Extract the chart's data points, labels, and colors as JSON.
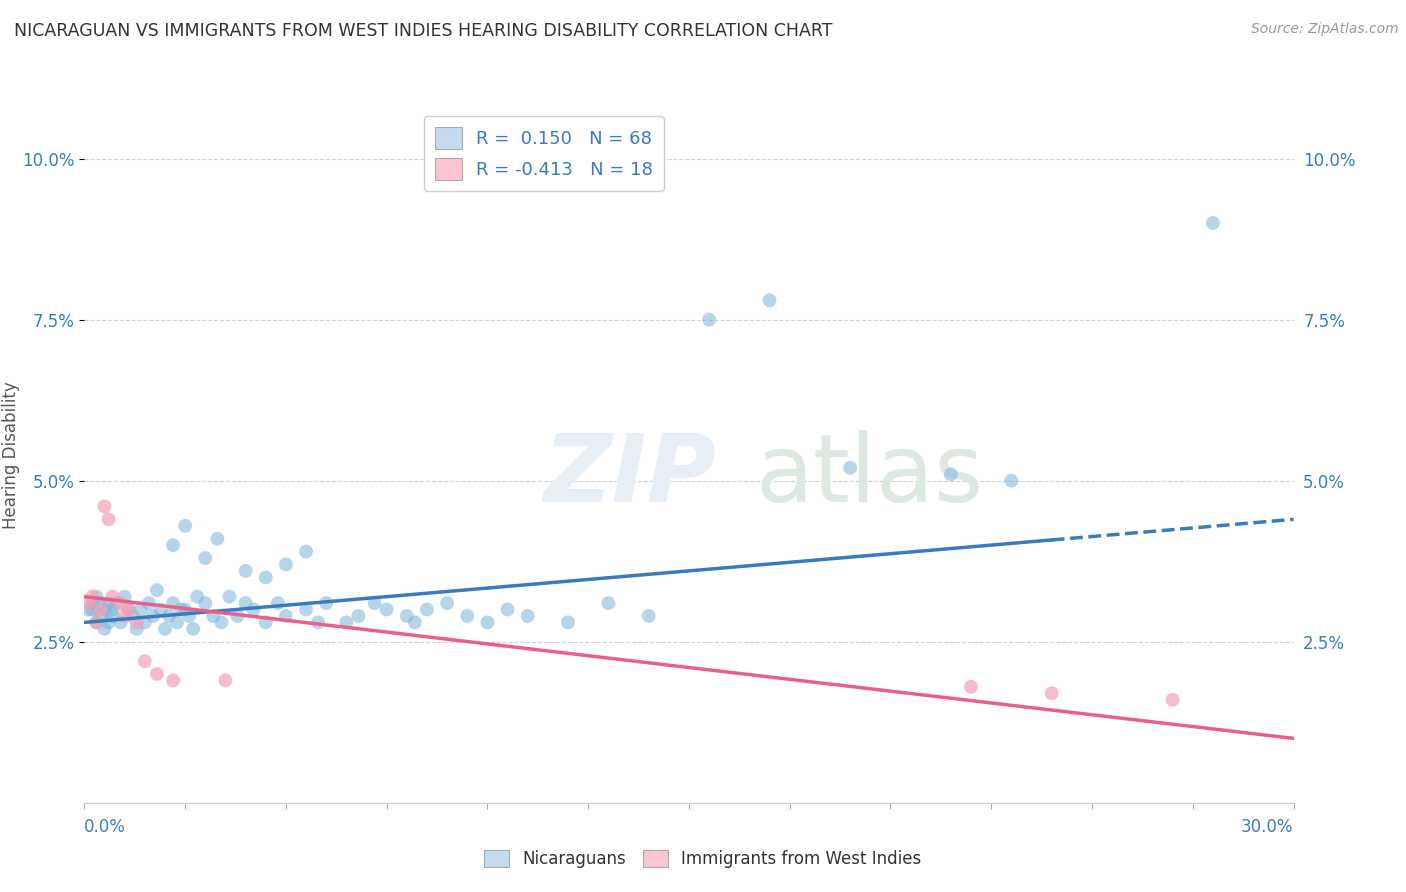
{
  "title": "NICARAGUAN VS IMMIGRANTS FROM WEST INDIES HEARING DISABILITY CORRELATION CHART",
  "source": "Source: ZipAtlas.com",
  "ylabel": "Hearing Disability",
  "legend_r1": "R =  0.150",
  "legend_n1": "N = 68",
  "legend_r2": "R = -0.413",
  "legend_n2": "N = 18",
  "blue_color": "#7ab4d8",
  "pink_color": "#f4a0b5",
  "blue_fill": "#c6dbef",
  "pink_fill": "#fcc5d3",
  "line_blue": "#3a7bbf",
  "line_pink": "#e8608a",
  "text_blue": "#3a7bbf",
  "bg_color": "#ffffff",
  "grid_color": "#cccccc",
  "xlim": [
    0.0,
    0.3
  ],
  "ylim": [
    0.0,
    0.108
  ],
  "yticks": [
    0.025,
    0.05,
    0.075,
    0.1
  ],
  "ytick_labels": [
    "2.5%",
    "5.0%",
    "7.5%",
    "10.0%"
  ],
  "blue_line_x0": 0.0,
  "blue_line_x1": 0.3,
  "blue_line_y0": 0.028,
  "blue_line_y1": 0.044,
  "blue_line_solid_end": 0.24,
  "pink_line_x0": 0.0,
  "pink_line_x1": 0.3,
  "pink_line_y0": 0.032,
  "pink_line_y1": 0.01,
  "blue_scatter_x": [
    0.001,
    0.002,
    0.002,
    0.003,
    0.003,
    0.004,
    0.004,
    0.005,
    0.005,
    0.006,
    0.006,
    0.007,
    0.007,
    0.008,
    0.009,
    0.01,
    0.011,
    0.012,
    0.013,
    0.014,
    0.015,
    0.016,
    0.017,
    0.018,
    0.019,
    0.02,
    0.021,
    0.022,
    0.023,
    0.024,
    0.025,
    0.026,
    0.027,
    0.028,
    0.03,
    0.032,
    0.034,
    0.036,
    0.038,
    0.04,
    0.042,
    0.045,
    0.048,
    0.05,
    0.055,
    0.058,
    0.06,
    0.065,
    0.068,
    0.072,
    0.075,
    0.08,
    0.082,
    0.085,
    0.09,
    0.095,
    0.1,
    0.105,
    0.11,
    0.12,
    0.13,
    0.14,
    0.155,
    0.17,
    0.19,
    0.215,
    0.23,
    0.28
  ],
  "blue_scatter_y": [
    0.03,
    0.03,
    0.031,
    0.028,
    0.032,
    0.029,
    0.031,
    0.027,
    0.03,
    0.028,
    0.031,
    0.03,
    0.029,
    0.031,
    0.028,
    0.032,
    0.03,
    0.029,
    0.027,
    0.03,
    0.028,
    0.031,
    0.029,
    0.033,
    0.03,
    0.027,
    0.029,
    0.031,
    0.028,
    0.03,
    0.03,
    0.029,
    0.027,
    0.032,
    0.031,
    0.029,
    0.028,
    0.032,
    0.029,
    0.031,
    0.03,
    0.028,
    0.031,
    0.029,
    0.03,
    0.028,
    0.031,
    0.028,
    0.029,
    0.031,
    0.03,
    0.029,
    0.028,
    0.03,
    0.031,
    0.029,
    0.028,
    0.03,
    0.029,
    0.028,
    0.031,
    0.029,
    0.075,
    0.078,
    0.052,
    0.051,
    0.05,
    0.09
  ],
  "blue_scatter_y_extra": [
    0.04,
    0.043,
    0.038,
    0.041,
    0.036,
    0.035,
    0.037,
    0.039
  ],
  "blue_scatter_x_extra": [
    0.022,
    0.025,
    0.03,
    0.033,
    0.04,
    0.045,
    0.05,
    0.055
  ],
  "pink_scatter_x": [
    0.001,
    0.002,
    0.003,
    0.004,
    0.005,
    0.006,
    0.007,
    0.009,
    0.01,
    0.011,
    0.013,
    0.015,
    0.018,
    0.022,
    0.035,
    0.22,
    0.24,
    0.27
  ],
  "pink_scatter_y": [
    0.031,
    0.032,
    0.028,
    0.03,
    0.046,
    0.044,
    0.032,
    0.031,
    0.029,
    0.03,
    0.028,
    0.022,
    0.02,
    0.019,
    0.019,
    0.018,
    0.017,
    0.016
  ],
  "marker_size": 100
}
